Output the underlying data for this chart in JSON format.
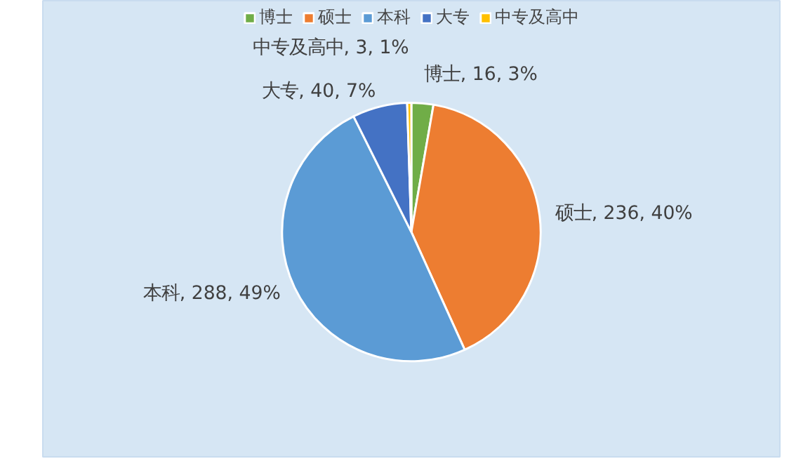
{
  "chart_data": {
    "type": "pie",
    "categories": [
      "博士",
      "硕士",
      "本科",
      "大专",
      "中专及高中"
    ],
    "values": [
      16,
      236,
      288,
      40,
      3
    ],
    "colors": [
      "#70ad47",
      "#ed7d31",
      "#5b9bd5",
      "#4472c4",
      "#ffc000"
    ],
    "value_labels": [
      "博士, 16, 3%",
      "硕士, 236, 40%",
      "本科, 288, 49%",
      "大专, 40, 7%",
      "中专及高中, 3, 1%"
    ],
    "legend": "top"
  }
}
